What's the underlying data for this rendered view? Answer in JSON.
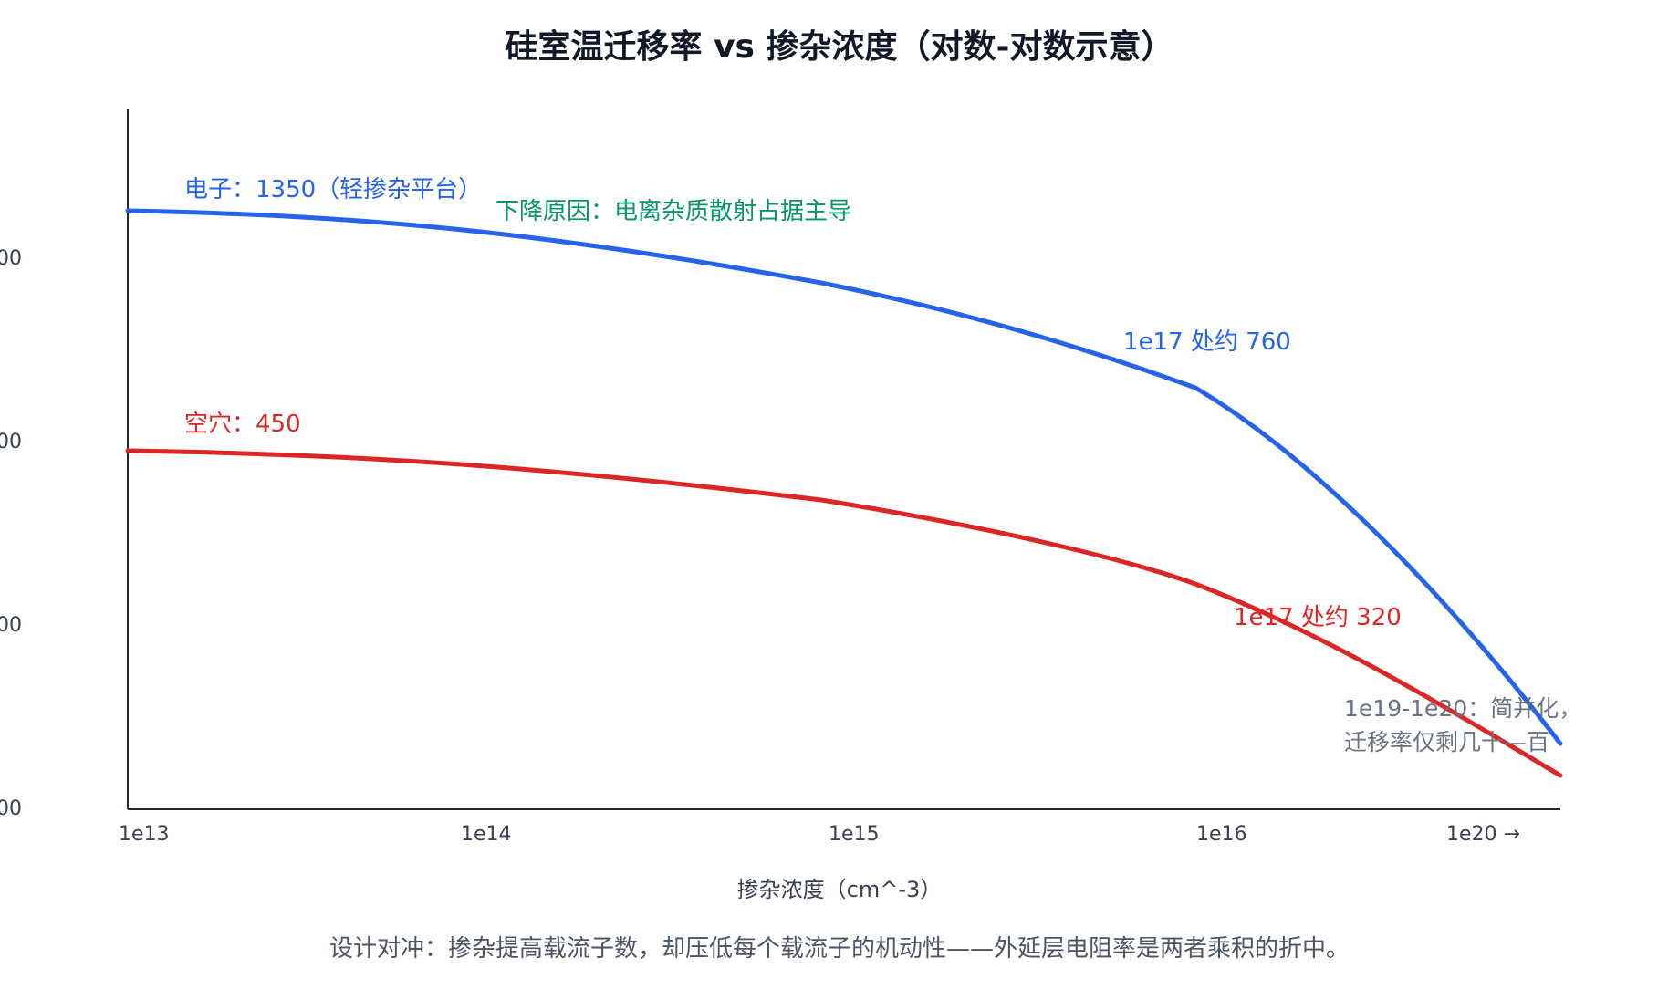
{
  "chart_data": {
    "type": "line",
    "title": "硅室温迁移率 vs 掺杂浓度（对数-对数示意）",
    "xlabel": "掺杂浓度（cm^-3）",
    "ylabel": "",
    "x_ticks": [
      "1e13",
      "1e14",
      "1e15",
      "1e16",
      "1e20 →"
    ],
    "y_ticks": [
      "00",
      "00",
      "00",
      "00"
    ],
    "series": [
      {
        "name": "电子",
        "color": "#2563eb",
        "points": [
          {
            "x": "1e13",
            "y": 1350
          },
          {
            "x": "1e14",
            "y": 1280
          },
          {
            "x": "1e15",
            "y": 1100
          },
          {
            "x": "1e16",
            "y": 860
          },
          {
            "x": "1e17",
            "y": 760
          },
          {
            "x": "1e18",
            "y": 450
          },
          {
            "x": "1e19",
            "y": 170
          },
          {
            "x": "1e20",
            "y": 90
          }
        ]
      },
      {
        "name": "空穴",
        "color": "#dc2626",
        "points": [
          {
            "x": "1e13",
            "y": 450
          },
          {
            "x": "1e14",
            "y": 430
          },
          {
            "x": "1e15",
            "y": 390
          },
          {
            "x": "1e16",
            "y": 340
          },
          {
            "x": "1e17",
            "y": 320
          },
          {
            "x": "1e18",
            "y": 220
          },
          {
            "x": "1e19",
            "y": 120
          },
          {
            "x": "1e20",
            "y": 60
          }
        ]
      }
    ],
    "annotations": {
      "electron": "电子：1350（轻掺杂平台）",
      "reason": "下降原因：电离杂质散射占据主导",
      "electron_1e17": "1e17 处约 760",
      "hole": "空穴：450",
      "hole_1e17": "1e17 处约 320",
      "degenerate_line1": "1e19-1e20：简并化，",
      "degenerate_line2": "迁移率仅剩几十—百"
    },
    "footnote": "设计对冲：掺杂提高载流子数，却压低每个载流子的机动性——外延层电阻率是两者乘积的折中。",
    "colors": {
      "electron": "#2563eb",
      "hole": "#dc2626",
      "reason": "#059669",
      "note": "#6b7280",
      "axis": "#1f2937"
    }
  }
}
